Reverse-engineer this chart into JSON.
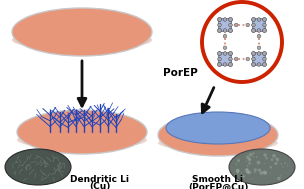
{
  "bg_color": "#ffffff",
  "salmon": "#E8967A",
  "salmon_light": "#eaa88a",
  "blue_fill": "#7B9ED9",
  "blue_edge": "#5577bb",
  "ellipse_edge_color": "#c8c8c8",
  "porphyrin_circle_color": "#cc2200",
  "porphyrin_node_color": "#aaaaaa",
  "porphyrin_link_color": "#dd7766",
  "porphyrin_box_color": "#aabbdd",
  "dendrite_color": "#2244bb",
  "arrow_color": "#111111",
  "text_porphyrin": "PorEP",
  "text_dendritic1": "Dendritic Li",
  "text_dendritic2": "(Cu)",
  "text_smooth1": "Smooth Li",
  "text_smooth2": "(PorEP@Cu)",
  "label_fontsize": 6.5,
  "label_fontweight": "bold",
  "sem_left_color": "#4a5550",
  "sem_right_color": "#6a7570"
}
